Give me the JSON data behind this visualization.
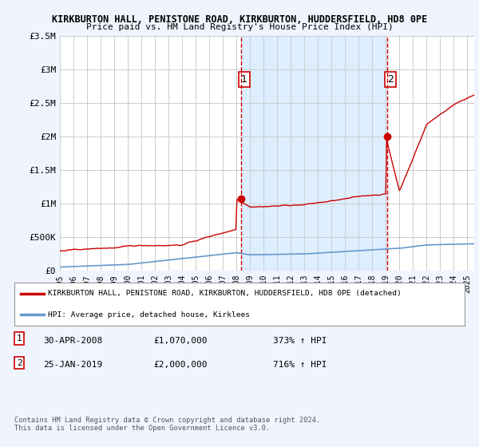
{
  "title1": "KIRKBURTON HALL, PENISTONE ROAD, KIRKBURTON, HUDDERSFIELD, HD8 0PE",
  "title2": "Price paid vs. HM Land Registry's House Price Index (HPI)",
  "ylim": [
    0,
    3500000
  ],
  "yticks": [
    0,
    500000,
    1000000,
    1500000,
    2000000,
    2500000,
    3000000,
    3500000
  ],
  "ytick_labels": [
    "£0",
    "£500K",
    "£1M",
    "£1.5M",
    "£2M",
    "£2.5M",
    "£3M",
    "£3.5M"
  ],
  "xlim_start": 1995.0,
  "xlim_end": 2025.5,
  "sale1_x": 2008.33,
  "sale1_y": 1070000,
  "sale2_x": 2019.07,
  "sale2_y": 2000000,
  "vline1_x": 2008.33,
  "vline2_x": 2019.07,
  "hpi_color": "#6699cc",
  "sale_color": "#cc0000",
  "vline_color": "#cc0000",
  "shade_color": "#ddeeff",
  "background_color": "#f0f4ff",
  "plot_bg_color": "#ffffff",
  "grid_color": "#cccccc",
  "legend_line1": "KIRKBURTON HALL, PENISTONE ROAD, KIRKBURTON, HUDDERSFIELD, HD8 0PE (detached)",
  "legend_line2": "HPI: Average price, detached house, Kirklees",
  "note1_date": "30-APR-2008",
  "note1_price": "£1,070,000",
  "note1_hpi": "373% ↑ HPI",
  "note2_date": "25-JAN-2019",
  "note2_price": "£2,000,000",
  "note2_hpi": "716% ↑ HPI",
  "footer": "Contains HM Land Registry data © Crown copyright and database right 2024.\nThis data is licensed under the Open Government Licence v3.0.",
  "xtick_years": [
    1995,
    1996,
    1997,
    1998,
    1999,
    2000,
    2001,
    2002,
    2003,
    2004,
    2005,
    2006,
    2007,
    2008,
    2009,
    2010,
    2011,
    2012,
    2013,
    2014,
    2015,
    2016,
    2017,
    2018,
    2019,
    2020,
    2021,
    2022,
    2023,
    2024,
    2025
  ]
}
